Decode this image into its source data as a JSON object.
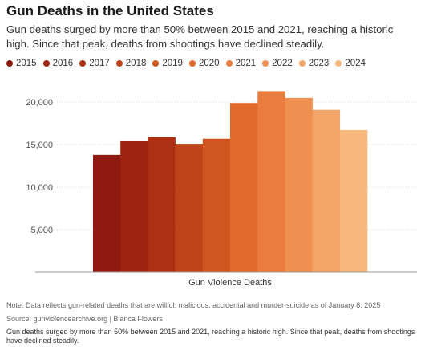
{
  "header": {
    "title": "Gun Deaths in the United States",
    "subtitle": "Gun deaths surged by more than 50% between 2015 and 2021, reaching a historic high. Since that peak, deaths from shootings have declined steadily."
  },
  "footer": {
    "note": "Note: Data reflects gun-related deaths that are willful, malicious, accidental and murder-suicide as of January 8, 2025",
    "source": "Source: gunviolencearchive.org | Bianca Flowers",
    "caption": "Gun deaths surged by more than 50% between 2015 and 2021, reaching a historic high. Since that peak, deaths from shootings have declined steadily."
  },
  "chart_data": {
    "type": "bar",
    "title": "Gun Deaths in the United States",
    "categories": [
      "Gun Violence Deaths"
    ],
    "xlabel": "",
    "ylabel": "",
    "ylim": [
      0,
      22000
    ],
    "yticks": [
      5000,
      10000,
      15000,
      20000
    ],
    "ytick_labels": [
      "5,000",
      "10,000",
      "15,000",
      "20,000"
    ],
    "grid": true,
    "legend": "top",
    "series": [
      {
        "name": "2015",
        "values": [
          13800
        ],
        "color": "#8e1a10"
      },
      {
        "name": "2016",
        "values": [
          15400
        ],
        "color": "#9e2312"
      },
      {
        "name": "2017",
        "values": [
          15900
        ],
        "color": "#ad3014"
      },
      {
        "name": "2018",
        "values": [
          15100
        ],
        "color": "#bf4419"
      },
      {
        "name": "2019",
        "values": [
          15700
        ],
        "color": "#d0561f"
      },
      {
        "name": "2020",
        "values": [
          19900
        ],
        "color": "#e06a2c"
      },
      {
        "name": "2021",
        "values": [
          21300
        ],
        "color": "#e97c3e"
      },
      {
        "name": "2022",
        "values": [
          20500
        ],
        "color": "#f09152"
      },
      {
        "name": "2023",
        "values": [
          19100
        ],
        "color": "#f4a568"
      },
      {
        "name": "2024",
        "values": [
          16700
        ],
        "color": "#f6b87d"
      }
    ]
  }
}
